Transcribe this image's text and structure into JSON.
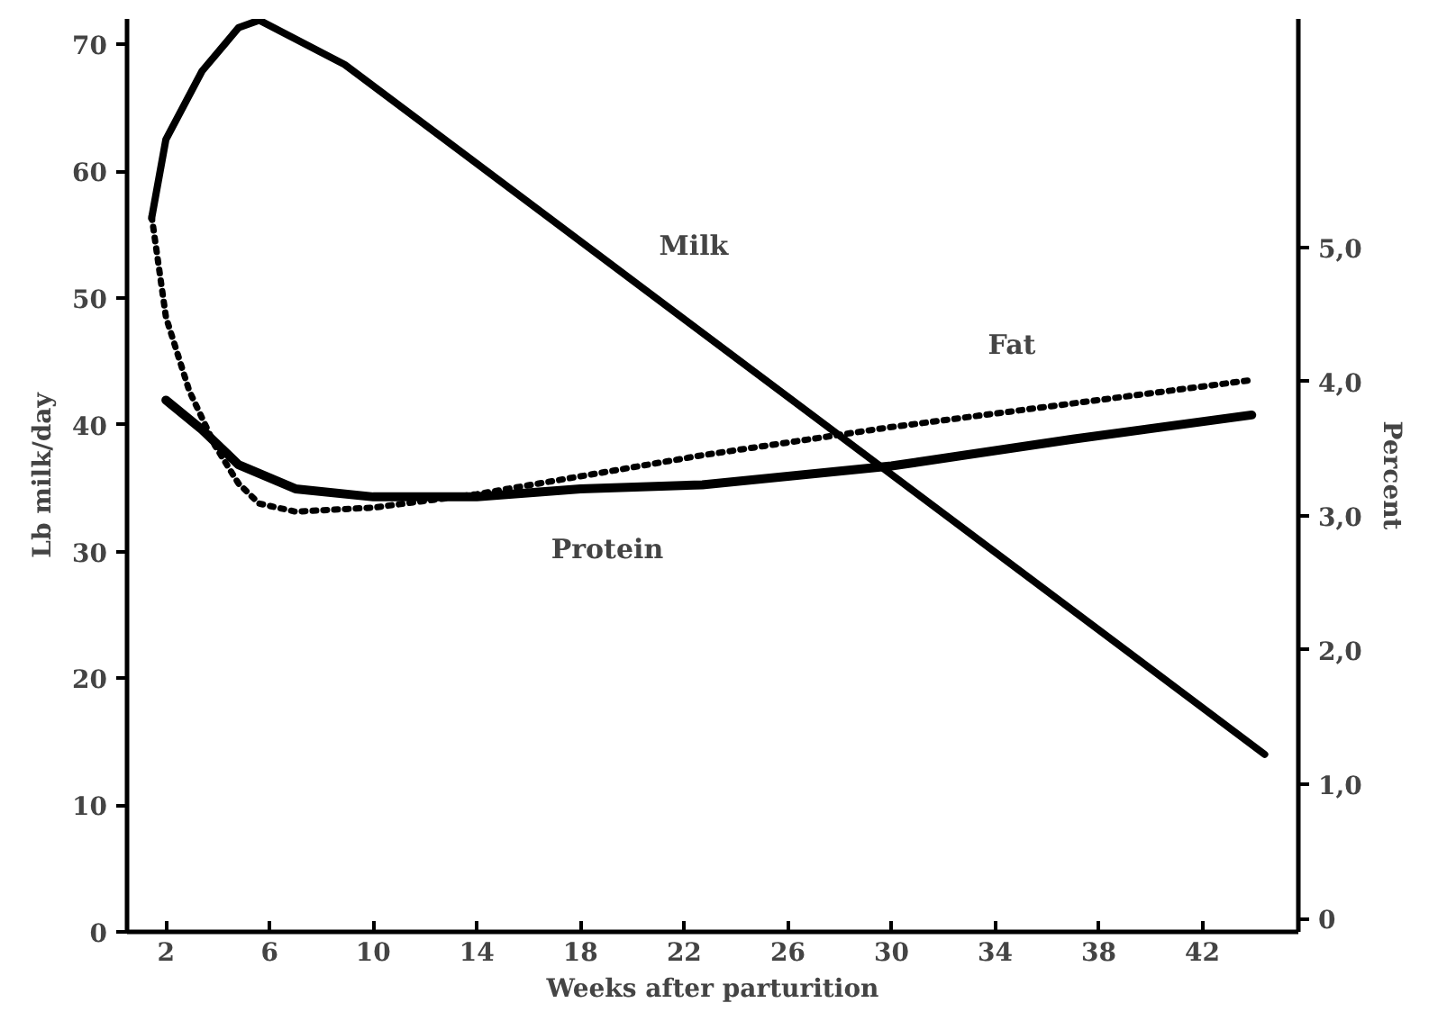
{
  "chart_data": {
    "type": "line",
    "xlabel": "Weeks after parturition",
    "ylabel": "Lb milk/day",
    "y2label": "Percent",
    "xlim": [
      0.5,
      45.7
    ],
    "ylim": [
      0,
      72
    ],
    "y2lim": [
      -0.1,
      6.7
    ],
    "xticks": [
      2,
      6,
      10,
      14,
      18,
      22,
      26,
      30,
      34,
      38,
      42
    ],
    "yticks": [
      0,
      10,
      20,
      30,
      40,
      50,
      60,
      70
    ],
    "y2ticks": [
      {
        "value": 0,
        "label": "0"
      },
      {
        "value": 1,
        "label": "1,0"
      },
      {
        "value": 2,
        "label": "2,0"
      },
      {
        "value": 3,
        "label": "3,0"
      },
      {
        "value": 4,
        "label": "4,0"
      },
      {
        "value": 5,
        "label": "5,0"
      }
    ],
    "grid": false,
    "legend": false,
    "series": [
      {
        "name": "Milk",
        "color": "#000000",
        "line_style": "solid",
        "x": [
          1.45,
          2.0,
          3.4,
          4.8,
          5.6,
          8.9,
          44.4
        ],
        "values": [
          56.3,
          62.5,
          67.9,
          71.3,
          71.9,
          68.4,
          14.0
        ]
      },
      {
        "name": "Fat",
        "color": "#000000",
        "axis": "y2",
        "line_style": "dotted",
        "x": [
          1.45,
          2.0,
          2.9,
          3.9,
          4.8,
          5.6,
          7,
          10,
          14,
          22.7,
          30,
          43.9
        ],
        "values": [
          5.23,
          4.48,
          3.93,
          3.52,
          3.24,
          3.09,
          3.03,
          3.06,
          3.16,
          3.45,
          3.66,
          4.01
        ]
      },
      {
        "name": "Protein",
        "color": "#000000",
        "axis": "y2",
        "line_style": "solid",
        "x": [
          2.0,
          3.4,
          4.8,
          7,
          10,
          14,
          18,
          22.7,
          30,
          37,
          43.9
        ],
        "values": [
          3.86,
          3.64,
          3.38,
          3.2,
          3.14,
          3.14,
          3.2,
          3.23,
          3.37,
          3.57,
          3.75
        ]
      }
    ]
  }
}
